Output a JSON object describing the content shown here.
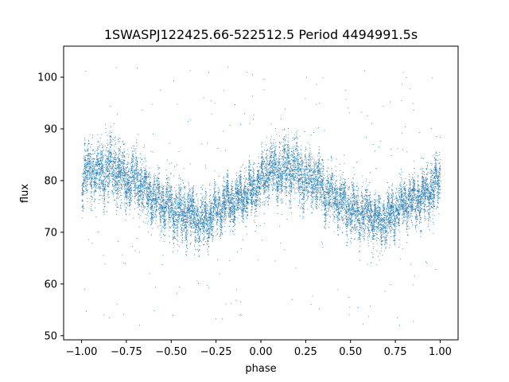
{
  "chart_data": {
    "type": "scatter",
    "title": "1SWASPJ122425.66-522512.5 Period 4494991.5s",
    "xlabel": "phase",
    "ylabel": "flux",
    "xlim": [
      -1.1,
      1.1
    ],
    "ylim": [
      49.2,
      106
    ],
    "x_ticks": [
      -1.0,
      -0.75,
      -0.5,
      -0.25,
      0.0,
      0.25,
      0.5,
      0.75,
      1.0
    ],
    "x_tick_labels": [
      "−1.00",
      "−0.75",
      "−0.50",
      "−0.25",
      "0.00",
      "0.25",
      "0.50",
      "0.75",
      "1.00"
    ],
    "y_ticks": [
      50,
      60,
      70,
      80,
      90,
      100
    ],
    "y_tick_labels": [
      "50",
      "60",
      "70",
      "80",
      "90",
      "100"
    ],
    "grid": false,
    "legend": "none",
    "point_color": "#1f77b4",
    "phase_range": [
      -1.0,
      1.0
    ],
    "light_curve_profile": [
      {
        "phase": 0.0,
        "median": 80.0,
        "spread": 4.0
      },
      {
        "phase": 0.05,
        "median": 82.5,
        "spread": 4.5
      },
      {
        "phase": 0.1,
        "median": 81.5,
        "spread": 4.5
      },
      {
        "phase": 0.15,
        "median": 82.5,
        "spread": 5.0
      },
      {
        "phase": 0.2,
        "median": 82.0,
        "spread": 5.0
      },
      {
        "phase": 0.25,
        "median": 80.0,
        "spread": 4.5
      },
      {
        "phase": 0.3,
        "median": 80.5,
        "spread": 4.5
      },
      {
        "phase": 0.35,
        "median": 78.0,
        "spread": 4.0
      },
      {
        "phase": 0.4,
        "median": 77.0,
        "spread": 4.0
      },
      {
        "phase": 0.45,
        "median": 75.5,
        "spread": 4.0
      },
      {
        "phase": 0.5,
        "median": 74.5,
        "spread": 4.5
      },
      {
        "phase": 0.55,
        "median": 73.0,
        "spread": 4.5
      },
      {
        "phase": 0.6,
        "median": 74.0,
        "spread": 4.0
      },
      {
        "phase": 0.65,
        "median": 72.0,
        "spread": 4.0
      },
      {
        "phase": 0.7,
        "median": 72.5,
        "spread": 4.0
      },
      {
        "phase": 0.75,
        "median": 74.0,
        "spread": 3.5
      },
      {
        "phase": 0.8,
        "median": 76.0,
        "spread": 3.5
      },
      {
        "phase": 0.85,
        "median": 76.0,
        "spread": 3.5
      },
      {
        "phase": 0.9,
        "median": 77.0,
        "spread": 3.5
      },
      {
        "phase": 0.95,
        "median": 78.0,
        "spread": 4.0
      },
      {
        "phase": 1.0,
        "median": 80.0,
        "spread": 4.0
      }
    ],
    "outlier_range": [
      52,
      102
    ],
    "points_per_unit_phase": 6500,
    "outlier_count": 260
  }
}
